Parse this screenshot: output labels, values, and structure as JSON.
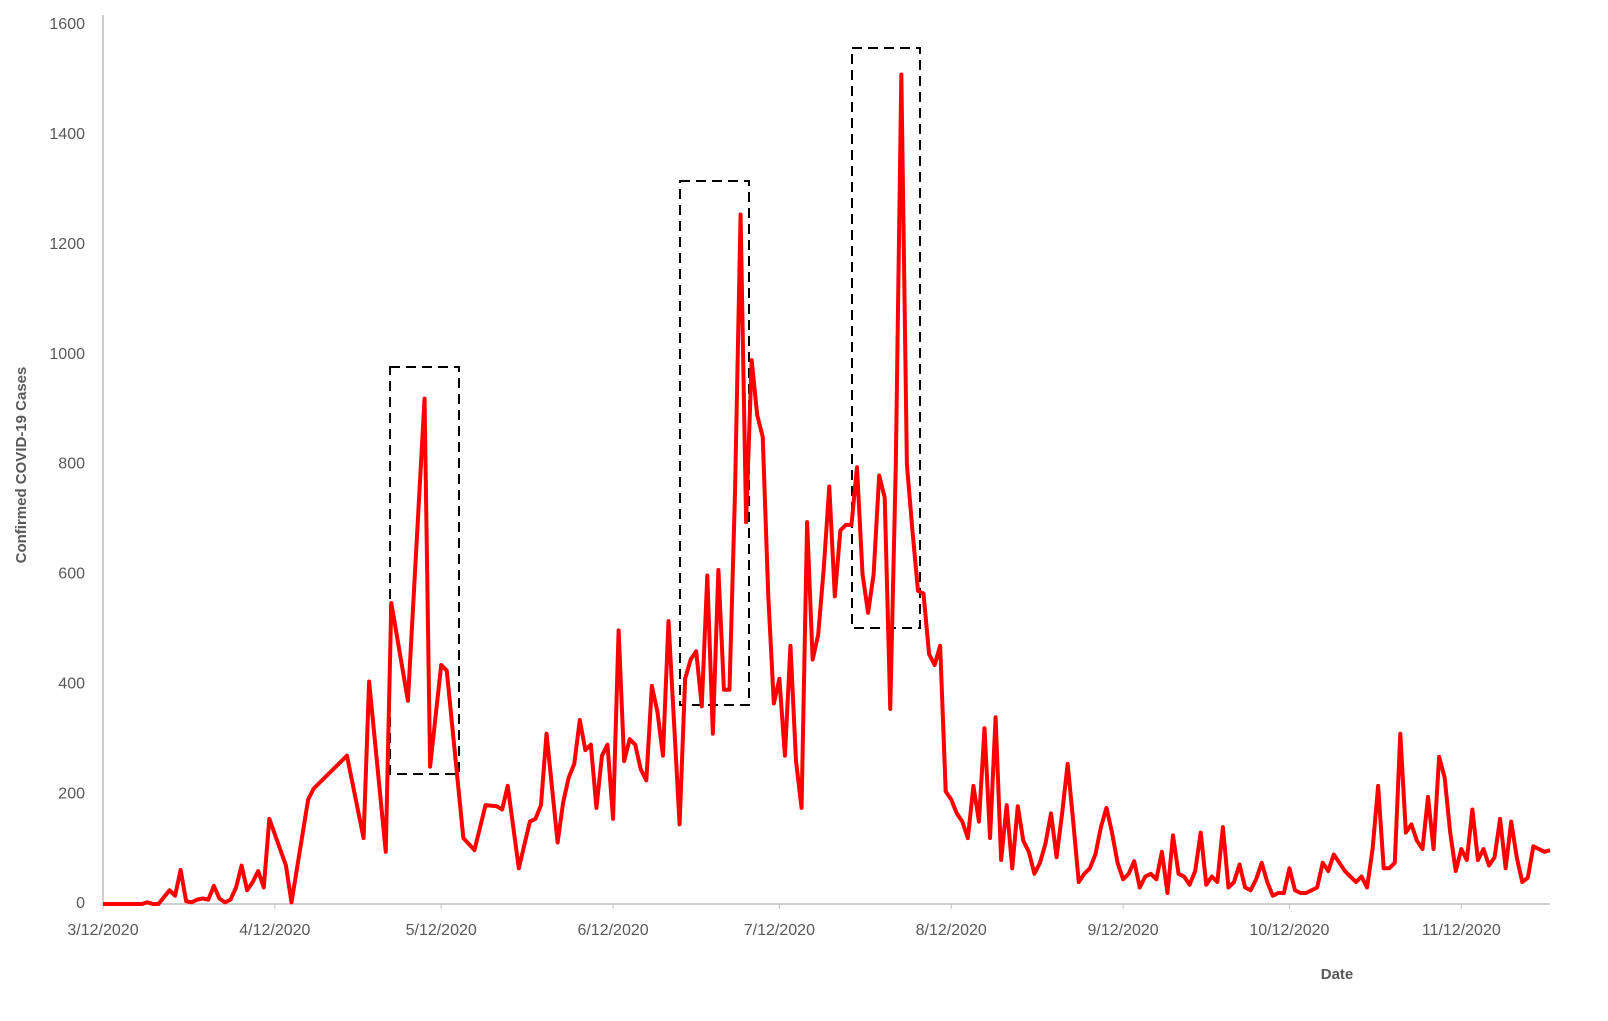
{
  "chart_data": {
    "type": "line",
    "y_label": "Confirmed COVID-19 Cases",
    "x_label": "Date",
    "xlim": [
      "3/12/2020",
      "11/28/2020"
    ],
    "xticks": [
      "3/12/2020",
      "4/12/2020",
      "5/12/2020",
      "6/12/2020",
      "7/12/2020",
      "8/12/2020",
      "9/12/2020",
      "10/12/2020",
      "11/12/2020"
    ],
    "ylim": [
      0,
      1600
    ],
    "yticks": [
      0,
      200,
      400,
      600,
      800,
      1000,
      1200,
      1400,
      1600
    ],
    "grid": false,
    "series": [
      {
        "color": "#ff0000",
        "x": [
          "3/12/2020",
          "3/19/2020",
          "3/20/2020",
          "3/21/2020",
          "3/22/2020",
          "3/24/2020",
          "3/25/2020",
          "3/26/2020",
          "3/27/2020",
          "3/28/2020",
          "3/29/2020",
          "3/30/2020",
          "3/31/2020",
          "4/1/2020",
          "4/2/2020",
          "4/3/2020",
          "4/4/2020",
          "4/5/2020",
          "4/6/2020",
          "4/7/2020",
          "4/8/2020",
          "4/9/2020",
          "4/10/2020",
          "4/11/2020",
          "4/14/2020",
          "4/15/2020",
          "4/18/2020",
          "4/19/2020",
          "4/25/2020",
          "4/28/2020",
          "4/29/2020",
          "5/2/2020",
          "5/3/2020",
          "5/6/2020",
          "5/9/2020",
          "5/10/2020",
          "5/12/2020",
          "5/13/2020",
          "5/16/2020",
          "5/18/2020",
          "5/20/2020",
          "5/22/2020",
          "5/23/2020",
          "5/24/2020",
          "5/26/2020",
          "5/28/2020",
          "5/29/2020",
          "5/30/2020",
          "5/31/2020",
          "6/2/2020",
          "6/3/2020",
          "6/4/2020",
          "6/5/2020",
          "6/6/2020",
          "6/7/2020",
          "6/8/2020",
          "6/9/2020",
          "6/10/2020",
          "6/11/2020",
          "6/12/2020",
          "6/13/2020",
          "6/14/2020",
          "6/15/2020",
          "6/16/2020",
          "6/17/2020",
          "6/18/2020",
          "6/19/2020",
          "6/20/2020",
          "6/21/2020",
          "6/22/2020",
          "6/24/2020",
          "6/25/2020",
          "6/26/2020",
          "6/27/2020",
          "6/28/2020",
          "6/29/2020",
          "6/30/2020",
          "7/1/2020",
          "7/2/2020",
          "7/3/2020",
          "7/4/2020",
          "7/5/2020",
          "7/6/2020",
          "7/7/2020",
          "7/8/2020",
          "7/9/2020",
          "7/10/2020",
          "7/11/2020",
          "7/12/2020",
          "7/13/2020",
          "7/14/2020",
          "7/15/2020",
          "7/16/2020",
          "7/17/2020",
          "7/18/2020",
          "7/19/2020",
          "7/20/2020",
          "7/21/2020",
          "7/22/2020",
          "7/23/2020",
          "7/24/2020",
          "7/25/2020",
          "7/26/2020",
          "7/27/2020",
          "7/28/2020",
          "7/29/2020",
          "7/30/2020",
          "7/31/2020",
          "8/1/2020",
          "8/2/2020",
          "8/3/2020",
          "8/4/2020",
          "8/5/2020",
          "8/6/2020",
          "8/7/2020",
          "8/8/2020",
          "8/9/2020",
          "8/10/2020",
          "8/11/2020",
          "8/12/2020",
          "8/13/2020",
          "8/14/2020",
          "8/15/2020",
          "8/16/2020",
          "8/17/2020",
          "8/18/2020",
          "8/19/2020",
          "8/20/2020",
          "8/21/2020",
          "8/22/2020",
          "8/23/2020",
          "8/24/2020",
          "8/25/2020",
          "8/26/2020",
          "8/27/2020",
          "8/28/2020",
          "8/29/2020",
          "8/30/2020",
          "8/31/2020",
          "9/1/2020",
          "9/2/2020",
          "9/3/2020",
          "9/4/2020",
          "9/5/2020",
          "9/6/2020",
          "9/7/2020",
          "9/8/2020",
          "9/9/2020",
          "9/10/2020",
          "9/11/2020",
          "9/12/2020",
          "9/13/2020",
          "9/14/2020",
          "9/15/2020",
          "9/16/2020",
          "9/17/2020",
          "9/18/2020",
          "9/19/2020",
          "9/20/2020",
          "9/21/2020",
          "9/22/2020",
          "9/23/2020",
          "9/24/2020",
          "9/25/2020",
          "9/26/2020",
          "9/27/2020",
          "9/28/2020",
          "9/29/2020",
          "9/30/2020",
          "10/1/2020",
          "10/2/2020",
          "10/3/2020",
          "10/4/2020",
          "10/5/2020",
          "10/6/2020",
          "10/7/2020",
          "10/8/2020",
          "10/9/2020",
          "10/10/2020",
          "10/11/2020",
          "10/12/2020",
          "10/13/2020",
          "10/14/2020",
          "10/15/2020",
          "10/16/2020",
          "10/17/2020",
          "10/18/2020",
          "10/19/2020",
          "10/20/2020",
          "10/21/2020",
          "10/22/2020",
          "10/23/2020",
          "10/24/2020",
          "10/25/2020",
          "10/26/2020",
          "10/27/2020",
          "10/28/2020",
          "10/29/2020",
          "10/30/2020",
          "10/31/2020",
          "11/1/2020",
          "11/2/2020",
          "11/3/2020",
          "11/4/2020",
          "11/5/2020",
          "11/6/2020",
          "11/7/2020",
          "11/8/2020",
          "11/9/2020",
          "11/10/2020",
          "11/11/2020",
          "11/12/2020",
          "11/13/2020",
          "11/14/2020",
          "11/15/2020",
          "11/16/2020",
          "11/17/2020",
          "11/18/2020",
          "11/19/2020",
          "11/20/2020",
          "11/21/2020",
          "11/22/2020",
          "11/23/2020",
          "11/24/2020",
          "11/25/2020",
          "11/26/2020",
          "11/27/2020",
          "11/28/2020"
        ],
        "values": [
          0,
          0,
          3,
          0,
          0,
          25,
          15,
          62,
          5,
          3,
          8,
          10,
          8,
          33,
          10,
          3,
          8,
          30,
          70,
          25,
          40,
          60,
          30,
          155,
          70,
          3,
          190,
          210,
          270,
          120,
          405,
          95,
          548,
          370,
          920,
          250,
          435,
          425,
          120,
          98,
          180,
          178,
          172,
          215,
          65,
          150,
          155,
          180,
          310,
          112,
          185,
          230,
          255,
          335,
          280,
          290,
          175,
          270,
          290,
          155,
          498,
          260,
          300,
          290,
          245,
          225,
          397,
          350,
          270,
          515,
          145,
          410,
          445,
          460,
          360,
          598,
          310,
          608,
          390,
          390,
          750,
          1255,
          695,
          990,
          890,
          850,
          560,
          365,
          410,
          270,
          470,
          260,
          175,
          695,
          445,
          490,
          610,
          760,
          560,
          680,
          690,
          690,
          795,
          600,
          530,
          600,
          780,
          740,
          355,
          800,
          1510,
          800,
          680,
          570,
          565,
          455,
          435,
          470,
          205,
          190,
          165,
          150,
          120,
          215,
          150,
          320,
          120,
          340,
          80,
          180,
          65,
          178,
          115,
          95,
          55,
          75,
          110,
          165,
          85,
          165,
          255,
          150,
          40,
          55,
          65,
          90,
          140,
          175,
          130,
          75,
          45,
          55,
          78,
          30,
          50,
          55,
          45,
          95,
          20,
          125,
          55,
          50,
          35,
          60,
          130,
          35,
          50,
          40,
          140,
          30,
          40,
          72,
          30,
          25,
          45,
          75,
          40,
          15,
          20,
          20,
          65,
          25,
          20,
          20,
          25,
          30,
          75,
          60,
          90,
          75,
          60,
          50,
          40,
          50,
          30,
          100,
          215,
          65,
          65,
          75,
          310,
          130,
          145,
          115,
          100,
          195,
          100,
          268,
          230,
          130,
          60,
          100,
          80,
          172,
          80,
          100,
          70,
          85,
          155,
          65,
          150,
          85,
          40,
          48,
          105,
          100,
          95,
          98
        ]
      }
    ]
  }
}
